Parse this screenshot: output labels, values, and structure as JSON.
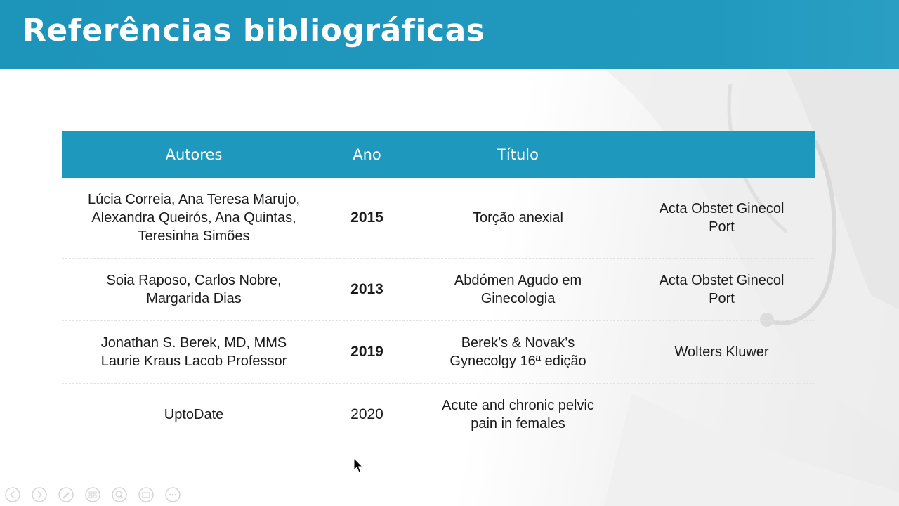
{
  "slide": {
    "title": "Referências bibliográficas"
  },
  "table": {
    "headers": {
      "authors": "Autores",
      "year": "Ano",
      "title": "Título",
      "source": ""
    },
    "rows": [
      {
        "authors": [
          "Lúcia Correia, Ana Teresa Marujo,",
          "Alexandra Queirós, Ana Quintas,",
          "Teresinha Simões"
        ],
        "year": "2015",
        "title": [
          "Torção anexial"
        ],
        "source": [
          "Acta Obstet Ginecol",
          "Port"
        ]
      },
      {
        "authors": [
          "Soia Raposo, Carlos Nobre,",
          "Margarida Dias"
        ],
        "year": "2013",
        "title": [
          "Abdómen Agudo em",
          "Ginecologia"
        ],
        "source": [
          "Acta Obstet Ginecol",
          "Port"
        ]
      },
      {
        "authors": [
          "Jonathan S. Berek, MD, MMS",
          "Laurie Kraus Lacob Professor"
        ],
        "year": "2019",
        "title": [
          "Berek’s & Novak’s",
          "Gynecolgy 16ª edição"
        ],
        "source": [
          "Wolters Kluwer"
        ]
      },
      {
        "authors": [
          "UptoDate"
        ],
        "year": "2020",
        "title": [
          "Acute and chronic pelvic",
          "pain in females"
        ],
        "source": []
      }
    ]
  },
  "colors": {
    "accent": "#1e98bd",
    "text": "#1a1a1a"
  },
  "toolbar": {
    "icons": [
      "previous-icon",
      "next-icon",
      "pen-icon",
      "slides-icon",
      "zoom-icon",
      "subtitles-icon",
      "more-icon"
    ]
  }
}
